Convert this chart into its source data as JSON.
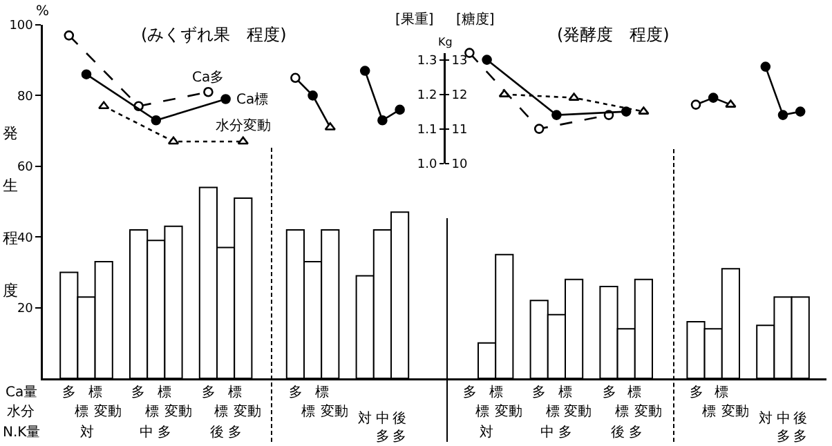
{
  "chart_data": {
    "type": "bar",
    "grid": false,
    "categories": [
      null,
      null,
      null,
      null,
      null,
      null,
      null,
      null,
      null,
      null,
      null,
      null,
      null,
      null,
      null,
      null,
      null,
      null,
      null,
      null,
      null,
      null,
      null,
      null,
      null,
      null,
      null,
      null,
      null,
      null,
      null,
      null,
      null,
      null,
      null,
      null,
      null,
      null,
      null,
      null,
      null,
      null,
      null,
      null,
      null
    ],
    "ylabel": "発生程度",
    "ylim": [
      0,
      100
    ],
    "yticks": [
      20,
      40,
      60,
      80,
      100
    ],
    "y2label": "[果重]",
    "y2lim": [
      1.0,
      1.32
    ],
    "y2ticks": [
      {
        "value": 1,
        "label": "1.0"
      },
      1.1,
      1.2,
      1.3
    ],
    "y3label": "[糖度]",
    "y3lim": [
      10,
      13.2
    ],
    "y3ticks": [
      10,
      11,
      12,
      13
    ],
    "series": [
      {
        "color": "#ffffff",
        "values": [
          null,
          30,
          23,
          33,
          null,
          42,
          39,
          43,
          null,
          54,
          37,
          51,
          null,
          null,
          42,
          33,
          42,
          null,
          29,
          42,
          47,
          null,
          null,
          null,
          0,
          10,
          35,
          null,
          22,
          18,
          28,
          null,
          26,
          14,
          28,
          null,
          null,
          16,
          14,
          31,
          null,
          15,
          23,
          23,
          null
        ]
      },
      {
        "type": "line",
        "name": "Ca多",
        "color": "#000000",
        "line_style": "dashed",
        "marker": "circle-open",
        "values": [
          null,
          97,
          null,
          null,
          null,
          77,
          null,
          null,
          null,
          81,
          null,
          null,
          null,
          null,
          null,
          null,
          null,
          null,
          null,
          null,
          null,
          null,
          null,
          null,
          null,
          null,
          null,
          null,
          null,
          null,
          null,
          null,
          null,
          null,
          null,
          null,
          null,
          null,
          null,
          null,
          null,
          null,
          null,
          null,
          null
        ]
      },
      {
        "type": "line",
        "name": "Ca標",
        "color": "#000000",
        "line_style": "solid",
        "marker": "circle",
        "values": [
          null,
          null,
          86,
          null,
          null,
          null,
          73,
          null,
          null,
          null,
          79,
          null,
          null,
          null,
          null,
          null,
          null,
          null,
          null,
          null,
          null,
          null,
          null,
          null,
          null,
          null,
          null,
          null,
          null,
          null,
          null,
          null,
          null,
          null,
          null,
          null,
          null,
          null,
          null,
          null,
          null,
          null,
          null,
          null,
          null
        ]
      },
      {
        "type": "line",
        "name": "水分変動",
        "color": "#000000",
        "line_style": "dotted",
        "marker": "triangle-open",
        "values": [
          null,
          null,
          null,
          77,
          null,
          null,
          null,
          67,
          null,
          null,
          null,
          67,
          null,
          null,
          null,
          null,
          null,
          null,
          null,
          null,
          null,
          null,
          null,
          null,
          null,
          null,
          null,
          null,
          null,
          null,
          null,
          null,
          null,
          null,
          null,
          null,
          null,
          null,
          null,
          null,
          null,
          null,
          null,
          null,
          null
        ]
      },
      {
        "type": "line",
        "color": "#000000",
        "line_style": "solid",
        "marker": "none",
        "values": [
          null,
          null,
          null,
          null,
          null,
          null,
          null,
          null,
          null,
          null,
          null,
          null,
          null,
          null,
          85,
          80,
          71,
          null,
          null,
          null,
          null,
          null,
          null,
          null,
          null,
          null,
          null,
          null,
          null,
          null,
          null,
          null,
          null,
          null,
          null,
          null,
          null,
          null,
          null,
          null,
          null,
          null,
          null,
          null,
          null
        ]
      },
      {
        "type": "scatter",
        "color": "#000000",
        "marker": "circle-open",
        "values": [
          null,
          null,
          null,
          null,
          null,
          null,
          null,
          null,
          null,
          null,
          null,
          null,
          null,
          null,
          85,
          null,
          null,
          null,
          null,
          null,
          null,
          null,
          null,
          null,
          null,
          null,
          null,
          null,
          null,
          null,
          null,
          null,
          null,
          null,
          null,
          null,
          null,
          null,
          null,
          null,
          null,
          null,
          null,
          null,
          null
        ]
      },
      {
        "type": "scatter",
        "color": "#000000",
        "marker": "circle",
        "values": [
          null,
          null,
          null,
          null,
          null,
          null,
          null,
          null,
          null,
          null,
          null,
          null,
          null,
          null,
          null,
          80,
          null,
          null,
          null,
          null,
          null,
          null,
          null,
          null,
          null,
          null,
          null,
          null,
          null,
          null,
          null,
          null,
          null,
          null,
          null,
          null,
          null,
          null,
          null,
          null,
          null,
          null,
          null,
          null,
          null
        ]
      },
      {
        "type": "scatter",
        "color": "#000000",
        "marker": "triangle-open",
        "values": [
          null,
          null,
          null,
          null,
          null,
          null,
          null,
          null,
          null,
          null,
          null,
          null,
          null,
          null,
          null,
          null,
          71,
          null,
          null,
          null,
          null,
          null,
          null,
          null,
          null,
          null,
          null,
          null,
          null,
          null,
          null,
          null,
          null,
          null,
          null,
          null,
          null,
          null,
          null,
          null,
          null,
          null,
          null,
          null,
          null
        ]
      },
      {
        "type": "line",
        "color": "#000000",
        "line_style": "solid",
        "marker": "circle",
        "values": [
          null,
          null,
          null,
          null,
          null,
          null,
          null,
          null,
          null,
          null,
          null,
          null,
          null,
          null,
          null,
          null,
          null,
          null,
          87,
          73,
          76,
          null,
          null,
          null,
          null,
          null,
          null,
          null,
          null,
          null,
          null,
          null,
          null,
          null,
          null,
          null,
          null,
          null,
          null,
          null,
          null,
          null,
          null,
          null,
          null
        ]
      },
      {
        "type": "line",
        "axis": "y2",
        "color": "#000000",
        "line_style": "dashed",
        "marker": "circle-open",
        "values": [
          null,
          null,
          null,
          null,
          null,
          null,
          null,
          null,
          null,
          null,
          null,
          null,
          null,
          null,
          null,
          null,
          null,
          null,
          null,
          null,
          null,
          null,
          null,
          null,
          1.32,
          null,
          null,
          null,
          1.1,
          null,
          null,
          null,
          1.14,
          null,
          null,
          null,
          null,
          null,
          null,
          null,
          null,
          null,
          null,
          null,
          null
        ]
      },
      {
        "type": "line",
        "axis": "y2",
        "color": "#000000",
        "line_style": "solid",
        "marker": "circle",
        "values": [
          null,
          null,
          null,
          null,
          null,
          null,
          null,
          null,
          null,
          null,
          null,
          null,
          null,
          null,
          null,
          null,
          null,
          null,
          null,
          null,
          null,
          null,
          null,
          null,
          null,
          1.3,
          null,
          null,
          null,
          1.14,
          null,
          null,
          null,
          1.15,
          null,
          null,
          null,
          null,
          null,
          null,
          null,
          null,
          null,
          null,
          null
        ]
      },
      {
        "type": "line",
        "axis": "y2",
        "color": "#000000",
        "line_style": "dotted",
        "marker": "triangle-open",
        "values": [
          null,
          null,
          null,
          null,
          null,
          null,
          null,
          null,
          null,
          null,
          null,
          null,
          null,
          null,
          null,
          null,
          null,
          null,
          null,
          null,
          null,
          null,
          null,
          null,
          null,
          null,
          1.2,
          null,
          null,
          null,
          1.19,
          null,
          null,
          null,
          1.15,
          null,
          null,
          null,
          null,
          null,
          null,
          null,
          null,
          null,
          null
        ]
      },
      {
        "type": "line",
        "axis": "y2",
        "color": "#000000",
        "line_style": "solid",
        "marker": "none",
        "values": [
          null,
          null,
          null,
          null,
          null,
          null,
          null,
          null,
          null,
          null,
          null,
          null,
          null,
          null,
          null,
          null,
          null,
          null,
          null,
          null,
          null,
          null,
          null,
          null,
          null,
          null,
          null,
          null,
          null,
          null,
          null,
          null,
          null,
          null,
          null,
          null,
          null,
          1.17,
          1.19,
          1.17,
          null,
          null,
          null,
          null,
          null
        ]
      },
      {
        "type": "scatter",
        "axis": "y2",
        "color": "#000000",
        "marker": "circle-open",
        "values": [
          null,
          null,
          null,
          null,
          null,
          null,
          null,
          null,
          null,
          null,
          null,
          null,
          null,
          null,
          null,
          null,
          null,
          null,
          null,
          null,
          null,
          null,
          null,
          null,
          null,
          null,
          null,
          null,
          null,
          null,
          null,
          null,
          null,
          null,
          null,
          null,
          null,
          1.17,
          null,
          null,
          null,
          null,
          null,
          null,
          null
        ]
      },
      {
        "type": "scatter",
        "axis": "y2",
        "color": "#000000",
        "marker": "circle",
        "values": [
          null,
          null,
          null,
          null,
          null,
          null,
          null,
          null,
          null,
          null,
          null,
          null,
          null,
          null,
          null,
          null,
          null,
          null,
          null,
          null,
          null,
          null,
          null,
          null,
          null,
          null,
          null,
          null,
          null,
          null,
          null,
          null,
          null,
          null,
          null,
          null,
          null,
          null,
          1.19,
          null,
          null,
          null,
          null,
          null,
          null
        ]
      },
      {
        "type": "scatter",
        "axis": "y2",
        "color": "#000000",
        "marker": "triangle-open",
        "values": [
          null,
          null,
          null,
          null,
          null,
          null,
          null,
          null,
          null,
          null,
          null,
          null,
          null,
          null,
          null,
          null,
          null,
          null,
          null,
          null,
          null,
          null,
          null,
          null,
          null,
          null,
          null,
          null,
          null,
          null,
          null,
          null,
          null,
          null,
          null,
          null,
          null,
          null,
          null,
          1.17,
          null,
          null,
          null,
          null,
          null
        ]
      },
      {
        "type": "line",
        "axis": "y2",
        "color": "#000000",
        "line_style": "solid",
        "marker": "circle",
        "values": [
          null,
          null,
          null,
          null,
          null,
          null,
          null,
          null,
          null,
          null,
          null,
          null,
          null,
          null,
          null,
          null,
          null,
          null,
          null,
          null,
          null,
          null,
          null,
          null,
          null,
          null,
          null,
          null,
          null,
          null,
          null,
          null,
          null,
          null,
          null,
          null,
          null,
          null,
          null,
          null,
          null,
          1.28,
          1.14,
          1.15,
          null
        ]
      }
    ],
    "annotations": [
      "(みくずれ果　程度)",
      "(発酵度　程度)",
      "%",
      "Kg",
      "Ca量",
      "水分",
      "N.K量",
      "多",
      "標",
      "標",
      "変動",
      "対",
      "多",
      "標",
      "標",
      "変動",
      "中 多",
      "多",
      "標",
      "標",
      "変動",
      "後 多",
      "多",
      "標",
      "標",
      "変動",
      "対",
      "中多",
      "後多",
      "多",
      "標",
      "標",
      "変動",
      "対",
      "多",
      "標",
      "標",
      "変動",
      "中 多",
      "多",
      "標",
      "標",
      "変動",
      "後 多",
      "多",
      "標",
      "標",
      "変動",
      "対",
      "中多",
      "後多"
    ]
  }
}
